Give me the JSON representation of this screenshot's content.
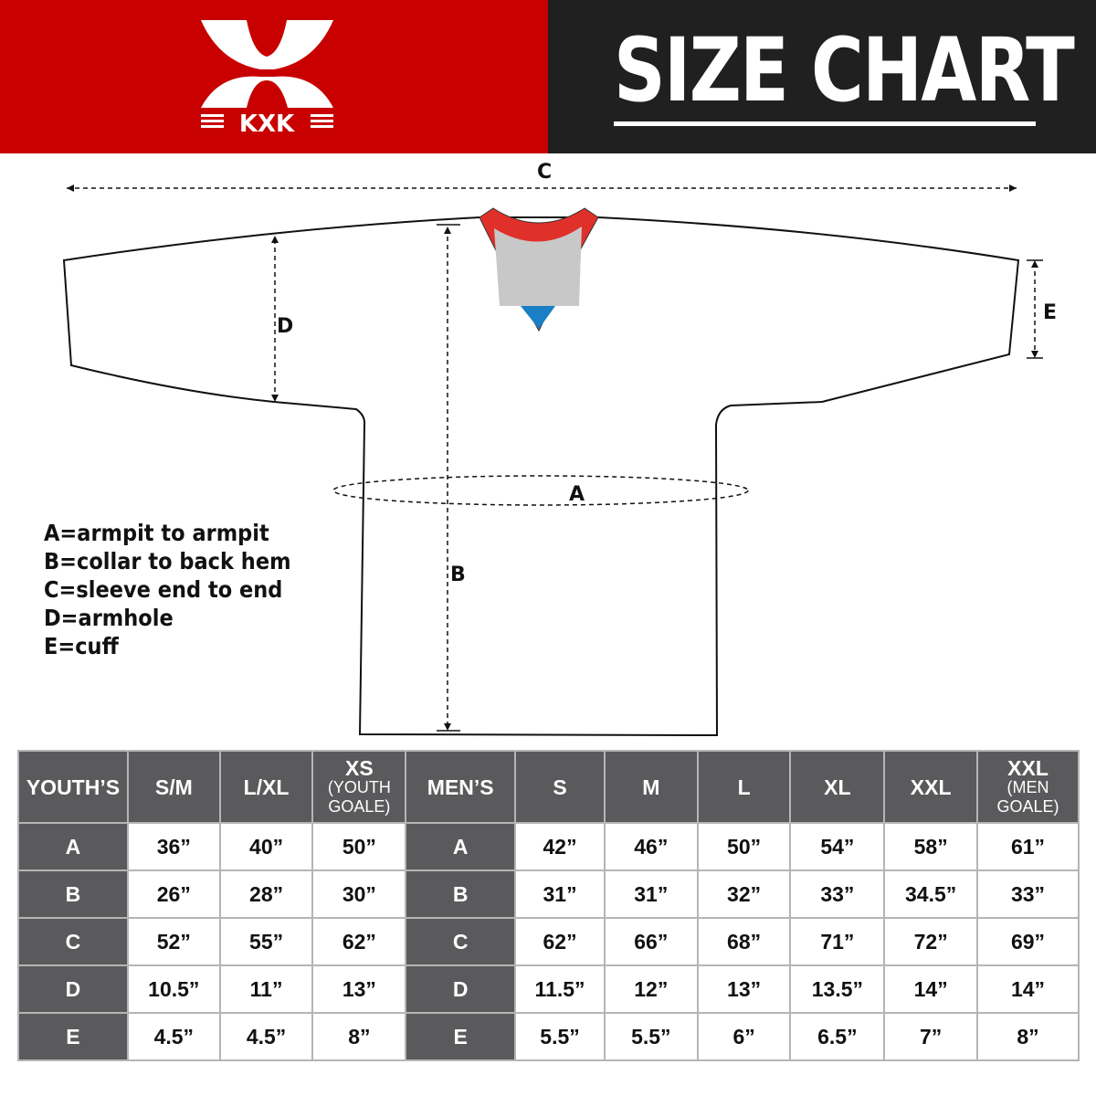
{
  "brand": {
    "logo_text": "KXK",
    "colors": {
      "red": "#c80000",
      "dark": "#202020",
      "table_header": "#5a5a5c"
    }
  },
  "header": {
    "title": "SIZE CHART"
  },
  "diagram": {
    "labels": {
      "a": "A",
      "b": "B",
      "c": "C",
      "d": "D",
      "e": "E"
    }
  },
  "legend": [
    "A=armpit to armpit",
    "B=collar to back hem",
    "C=sleeve end to end",
    "D=armhole",
    "E=cuff"
  ],
  "table": {
    "headers": [
      {
        "main": "YOUTH’S"
      },
      {
        "main": "S/M"
      },
      {
        "main": "L/XL"
      },
      {
        "main": "XS",
        "sub": "(YOUTH GOALE)"
      },
      {
        "main": "MEN’S"
      },
      {
        "main": "S"
      },
      {
        "main": "M"
      },
      {
        "main": "L"
      },
      {
        "main": "XL"
      },
      {
        "main": "XXL"
      },
      {
        "main": "XXL",
        "sub": "(MEN GOALE)"
      }
    ],
    "rows": [
      {
        "youth_key": "A",
        "youth": [
          "36”",
          "40”",
          "50”"
        ],
        "men_key": "A",
        "men": [
          "42”",
          "46”",
          "50”",
          "54”",
          "58”",
          "61”"
        ]
      },
      {
        "youth_key": "B",
        "youth": [
          "26”",
          "28”",
          "30”"
        ],
        "men_key": "B",
        "men": [
          "31”",
          "31”",
          "32”",
          "33”",
          "34.5”",
          "33”"
        ]
      },
      {
        "youth_key": "C",
        "youth": [
          "52”",
          "55”",
          "62”"
        ],
        "men_key": "C",
        "men": [
          "62”",
          "66”",
          "68”",
          "71”",
          "72”",
          "69”"
        ]
      },
      {
        "youth_key": "D",
        "youth": [
          "10.5”",
          "11”",
          "13”"
        ],
        "men_key": "D",
        "men": [
          "11.5”",
          "12”",
          "13”",
          "13.5”",
          "14”",
          "14”"
        ]
      },
      {
        "youth_key": "E",
        "youth": [
          "4.5”",
          "4.5”",
          "8”"
        ],
        "men_key": "E",
        "men": [
          "5.5”",
          "5.5”",
          "6”",
          "6.5”",
          "7”",
          "8”"
        ]
      }
    ]
  }
}
